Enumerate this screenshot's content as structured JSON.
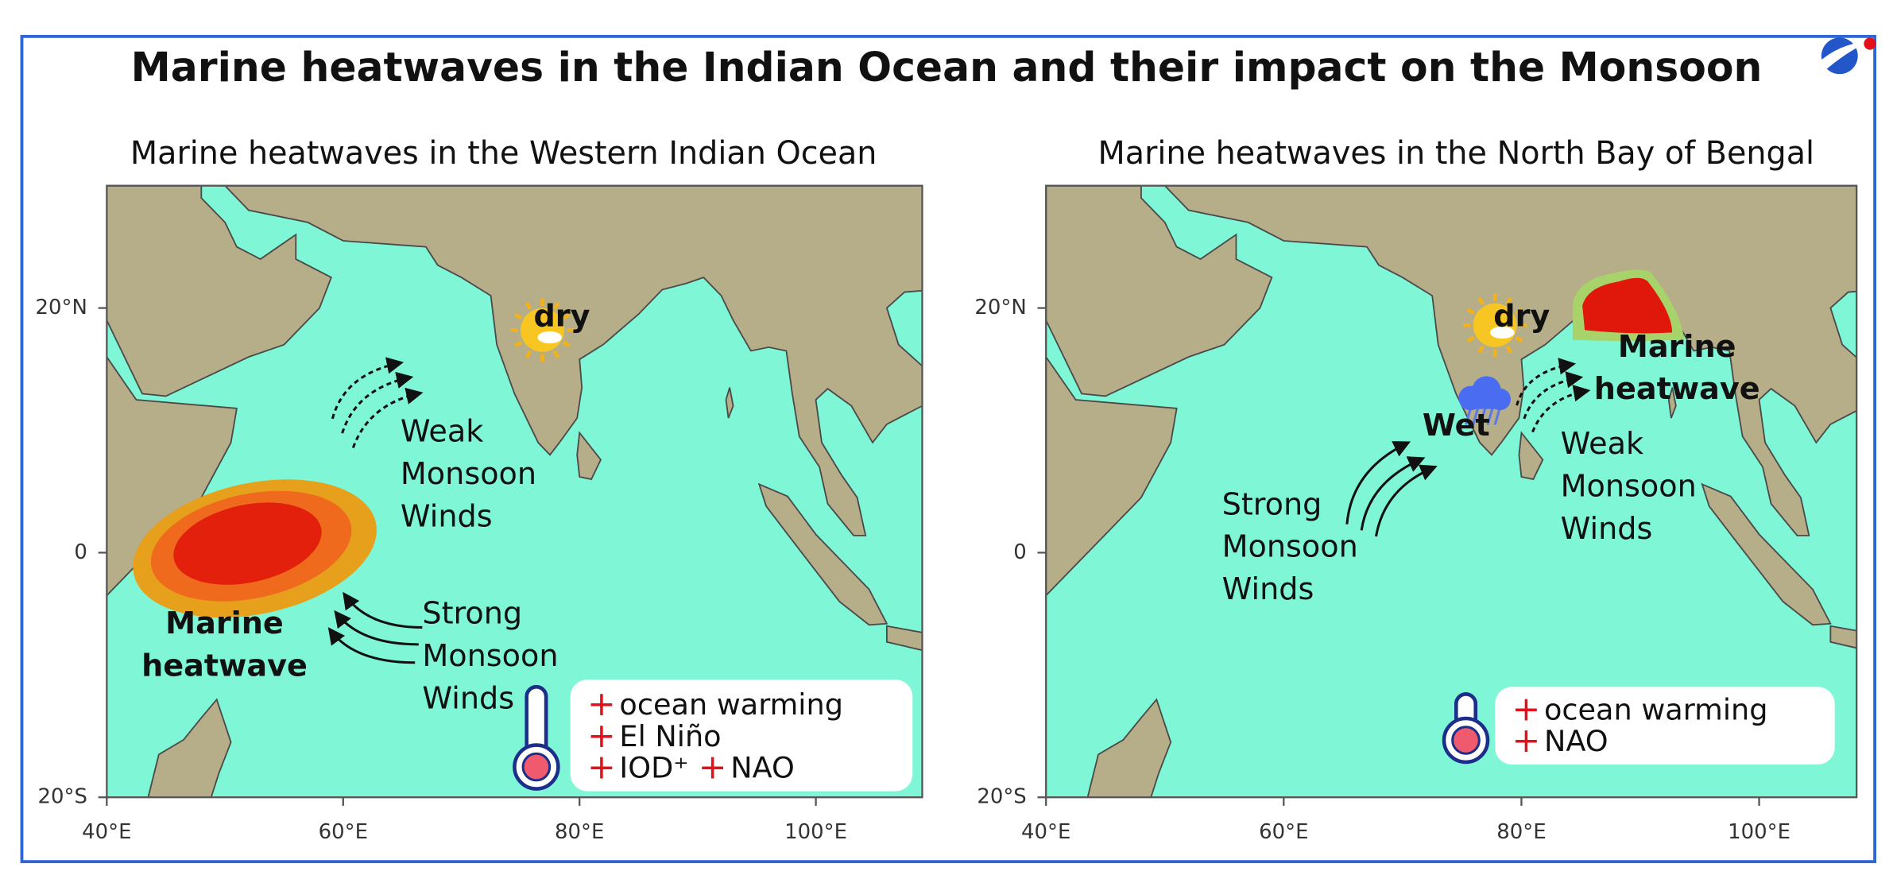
{
  "title": "Marine heatwaves in the Indian Ocean and their impact on the Monsoon",
  "panels": [
    {
      "subtitle": "Marine heatwaves in the Western Indian Ocean",
      "xlim": [
        40,
        109
      ],
      "ylim": [
        -20,
        30
      ],
      "xticks": [
        {
          "value": 40,
          "label": "40°E"
        },
        {
          "value": 60,
          "label": "60°E"
        },
        {
          "value": 80,
          "label": "80°E"
        },
        {
          "value": 100,
          "label": "100°E"
        }
      ],
      "yticks": [
        {
          "value": 20,
          "label": "20°N"
        },
        0,
        {
          "value": -20,
          "label": "20°S"
        }
      ],
      "annotations": [
        [
          "dry"
        ],
        [
          "Weak",
          "Monsoon",
          "Winds"
        ],
        [
          "Marine",
          "heatwave"
        ],
        [
          "Strong",
          "Monsoon",
          "Winds"
        ]
      ],
      "legend": {
        "marker": "+",
        "items": [
          [
            "ocean warming"
          ],
          [
            "El Niño"
          ],
          [
            "IOD⁺",
            "NAO"
          ]
        ]
      }
    },
    {
      "subtitle": "Marine heatwaves in the North Bay of Bengal",
      "xlim": [
        40,
        108.2
      ],
      "ylim": [
        -20,
        30
      ],
      "xticks": [
        {
          "value": 40,
          "label": "40°E"
        },
        {
          "value": 60,
          "label": "60°E"
        },
        {
          "value": 80,
          "label": "80°E"
        },
        {
          "value": 100,
          "label": "100°E"
        }
      ],
      "yticks": [
        {
          "value": 20,
          "label": "20°N"
        },
        0,
        {
          "value": -20,
          "label": "20°S"
        }
      ],
      "annotations": [
        [
          "dry"
        ],
        [
          "Wet"
        ],
        [
          "Marine",
          "heatwave"
        ],
        [
          "Weak",
          "Monsoon",
          "Winds"
        ],
        [
          "Strong",
          "Monsoon",
          "Winds"
        ]
      ],
      "legend": {
        "marker": "+",
        "items": [
          [
            "ocean warming"
          ],
          [
            "NAO"
          ]
        ]
      }
    }
  ]
}
